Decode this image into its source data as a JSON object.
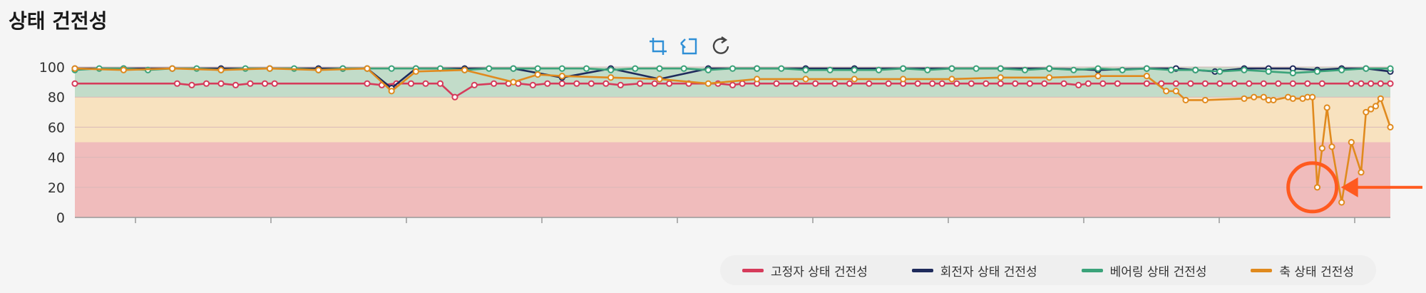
{
  "page": {
    "title": "상태 건전성"
  },
  "toolbar": [
    {
      "name": "zoom-select-icon",
      "color": "#2f8fd6"
    },
    {
      "name": "zoom-reset-icon",
      "color": "#2f8fd6"
    },
    {
      "name": "refresh-icon",
      "color": "#444444"
    }
  ],
  "chart_data": {
    "type": "line",
    "title": "상태 건전성",
    "xlabel": "",
    "ylabel": "",
    "ylim": [
      0,
      100
    ],
    "yticks": [
      0,
      20,
      40,
      60,
      80,
      100
    ],
    "grid": true,
    "legend_position": "bottom-right",
    "bands": [
      {
        "from": 0,
        "to": 50,
        "color": "#f0bcbc"
      },
      {
        "from": 50,
        "to": 80,
        "color": "#f8e2bf"
      },
      {
        "from": 80,
        "to": 100,
        "color": "#c2dcc9"
      }
    ],
    "annotation": {
      "type": "circle-arrow",
      "x": 254,
      "y": 20,
      "color": "#ff5a1f"
    },
    "x_count": 271,
    "series": [
      {
        "name": "고정자 상태 건전성",
        "color": "#d63b5b",
        "x": [
          0,
          21,
          24,
          27,
          30,
          33,
          36,
          39,
          41,
          60,
          63,
          66,
          69,
          72,
          75,
          78,
          82,
          86,
          89,
          91,
          94,
          97,
          100,
          103,
          106,
          109,
          112,
          116,
          119,
          122,
          126,
          132,
          135,
          137,
          140,
          144,
          148,
          152,
          156,
          159,
          163,
          167,
          170,
          173,
          176,
          178,
          181,
          184,
          187,
          190,
          193,
          196,
          199,
          203,
          206,
          208,
          211,
          214,
          220,
          223,
          226,
          229,
          232,
          235,
          238,
          241,
          244,
          247,
          250,
          253,
          256,
          262,
          264,
          266,
          268,
          270
        ],
        "values": [
          89,
          89,
          88,
          89,
          89,
          88,
          89,
          89,
          89,
          89,
          88,
          89,
          89,
          89,
          89,
          80,
          88,
          89,
          89,
          89,
          88,
          89,
          89,
          89,
          89,
          89,
          88,
          89,
          89,
          89,
          89,
          89,
          88,
          89,
          89,
          89,
          89,
          89,
          89,
          89,
          89,
          89,
          89,
          89,
          89,
          89,
          89,
          89,
          89,
          89,
          89,
          89,
          89,
          89,
          88,
          89,
          89,
          89,
          89,
          89,
          89,
          89,
          89,
          89,
          89,
          89,
          89,
          89,
          89,
          89,
          89,
          89,
          89,
          89,
          89,
          89
        ]
      },
      {
        "name": "회전자 상태 건전성",
        "color": "#1f2b5c",
        "x": [
          0,
          10,
          20,
          30,
          40,
          50,
          55,
          60,
          65,
          70,
          80,
          90,
          100,
          110,
          120,
          130,
          140,
          150,
          160,
          170,
          180,
          190,
          200,
          210,
          220,
          226,
          230,
          234,
          240,
          245,
          250,
          255,
          260,
          265,
          270
        ],
        "values": [
          99,
          99,
          99,
          99,
          99,
          99,
          99,
          99,
          86,
          99,
          99,
          99,
          93,
          99,
          92,
          99,
          99,
          99,
          99,
          99,
          99,
          99,
          99,
          98,
          99,
          99,
          98,
          97,
          99,
          99,
          99,
          98,
          99,
          99,
          97
        ]
      },
      {
        "name": "베어링 상태 건전성",
        "color": "#3ba37a",
        "x": [
          0,
          5,
          10,
          15,
          20,
          25,
          30,
          35,
          40,
          45,
          50,
          55,
          60,
          65,
          70,
          75,
          80,
          85,
          90,
          95,
          100,
          105,
          110,
          115,
          120,
          125,
          130,
          135,
          140,
          145,
          150,
          155,
          160,
          165,
          170,
          175,
          180,
          185,
          190,
          195,
          200,
          205,
          210,
          215,
          220,
          225,
          230,
          235,
          240,
          245,
          250,
          255,
          260,
          265,
          270
        ],
        "values": [
          98,
          99,
          99,
          98,
          99,
          99,
          98,
          99,
          99,
          99,
          98,
          99,
          99,
          99,
          99,
          99,
          98,
          99,
          99,
          99,
          99,
          99,
          98,
          99,
          99,
          99,
          98,
          99,
          99,
          99,
          98,
          98,
          98,
          98,
          99,
          98,
          99,
          99,
          99,
          98,
          99,
          98,
          99,
          98,
          99,
          98,
          98,
          97,
          98,
          97,
          96,
          97,
          98,
          99,
          99
        ]
      },
      {
        "name": "축 상태 건전성",
        "color": "#e08a1e",
        "x": [
          0,
          10,
          20,
          30,
          40,
          50,
          60,
          65,
          70,
          80,
          90,
          95,
          100,
          110,
          120,
          130,
          140,
          150,
          160,
          170,
          180,
          190,
          200,
          210,
          220,
          224,
          226,
          228,
          232,
          240,
          242,
          244,
          245,
          246,
          249,
          250,
          252,
          253,
          254,
          255,
          256,
          257,
          258,
          260,
          262,
          264,
          265,
          266,
          267,
          268,
          270
        ],
        "values": [
          99,
          98,
          99,
          98,
          99,
          98,
          99,
          84,
          97,
          98,
          90,
          95,
          94,
          93,
          92,
          89,
          92,
          92,
          92,
          92,
          92,
          93,
          93,
          94,
          94,
          84,
          84,
          78,
          78,
          79,
          80,
          80,
          78,
          78,
          80,
          79,
          79,
          80,
          80,
          20,
          46,
          73,
          47,
          10,
          50,
          30,
          70,
          72,
          74,
          79,
          60
        ]
      }
    ]
  }
}
